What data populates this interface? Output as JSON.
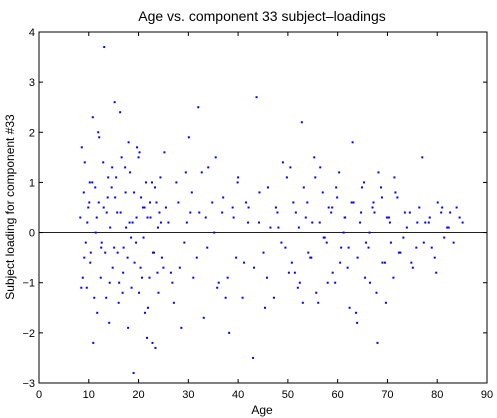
{
  "chart_data": {
    "type": "scatter",
    "title": "Age vs. component 33 subject–loadings",
    "xlabel": "Age",
    "ylabel": "Subject loading for component #33",
    "xlim": [
      0,
      90
    ],
    "ylim": [
      -3,
      4
    ],
    "xticks": [
      "0",
      "10",
      "20",
      "30",
      "40",
      "50",
      "60",
      "70",
      "80",
      "90"
    ],
    "yticks": [
      "−3",
      "−2",
      "−1",
      "0",
      "1",
      "2",
      "3",
      "4"
    ],
    "zero_line": 0,
    "grid": false,
    "point_color": "#0000ff",
    "series": [
      {
        "x": [
          8.3,
          8.8,
          9.2,
          9.6,
          10.1,
          10.4,
          10.8,
          11.3,
          11.7,
          12.1,
          12.6,
          13.0,
          13.5,
          13.9,
          14.3,
          14.8,
          15.2,
          15.7,
          16.1,
          16.6,
          17.0,
          17.4,
          17.9,
          18.3,
          18.8,
          19.2,
          19.7,
          20.1,
          20.5,
          21.0,
          21.5,
          21.9,
          22.4,
          22.8,
          23.3,
          23.8,
          24.2,
          24.7,
          25.2,
          26.0,
          27.1,
          28.0,
          29.2,
          30.1,
          31.0,
          32.2,
          33.1,
          34.0,
          35.2,
          36.1,
          37.0,
          38.2,
          39.1,
          40.0,
          41.2,
          42.1,
          43.0,
          44.2,
          45.1,
          46.0,
          47.2,
          48.1,
          49.0,
          50.2,
          51.1,
          52.0,
          52.8,
          53.6,
          54.5,
          55.3,
          56.1,
          57.0,
          57.8,
          58.7,
          59.5,
          60.3,
          61.2,
          62.0,
          62.8,
          63.7,
          64.5,
          65.3,
          66.2,
          67.0,
          67.8,
          68.7,
          69.5,
          70.3,
          71.2,
          72.0,
          73.2,
          74.5,
          75.8,
          77.0,
          78.3,
          79.5,
          80.8,
          82.0,
          83.3,
          84.5,
          8.5,
          9.0,
          9.4,
          9.9,
          10.3,
          10.7,
          11.1,
          11.6,
          12.0,
          12.4,
          12.9,
          13.3,
          13.8,
          14.2,
          14.6,
          15.1,
          15.5,
          16.0,
          16.4,
          16.9,
          17.3,
          17.8,
          18.2,
          18.6,
          19.1,
          19.5,
          20.0,
          20.4,
          20.9,
          21.3,
          21.8,
          22.2,
          22.7,
          23.1,
          23.6,
          24.0,
          24.5,
          25.0,
          26.5,
          27.6,
          28.6,
          29.7,
          30.7,
          31.7,
          32.7,
          33.8,
          34.8,
          35.8,
          36.8,
          37.9,
          38.9,
          39.9,
          40.9,
          42.0,
          43.2,
          44.3,
          45.4,
          46.5,
          47.6,
          48.7,
          49.8,
          50.8,
          51.6,
          52.4,
          53.2,
          54.1,
          54.9,
          55.7,
          56.5,
          57.4,
          58.2,
          59.0,
          59.9,
          60.7,
          61.5,
          62.4,
          63.2,
          64.0,
          64.9,
          65.7,
          66.5,
          67.4,
          68.2,
          69.0,
          69.9,
          70.7,
          71.6,
          72.6,
          73.9,
          75.1,
          76.4,
          77.6,
          78.9,
          80.1,
          81.4,
          82.6,
          83.9,
          85.1,
          8.6,
          9.1,
          9.7,
          10.2,
          10.9,
          11.4,
          11.9,
          12.5,
          13.1,
          13.6,
          14.1,
          14.7,
          15.3,
          15.8,
          16.3,
          16.8,
          17.5,
          18.0,
          18.5,
          19.0,
          19.6,
          20.2,
          20.7,
          21.2,
          21.7,
          22.3,
          22.9,
          23.4,
          23.9,
          24.4,
          25.5,
          26.8,
          28.3,
          29.5,
          30.4,
          32.0,
          33.5,
          35.5,
          37.5,
          39.6,
          41.6,
          43.7,
          45.8,
          47.9,
          49.5,
          50.5,
          51.4,
          52.2,
          53.0,
          53.9,
          54.7,
          55.5,
          56.4,
          57.2,
          58.0,
          58.9,
          59.7,
          60.5,
          61.4,
          62.2,
          63.0,
          63.9,
          64.7,
          65.5,
          66.4,
          67.2,
          68.0,
          68.9,
          69.7,
          70.5,
          71.4,
          72.3,
          73.5,
          74.8,
          76.0,
          77.3,
          78.5,
          79.8,
          81.0,
          82.3
        ],
        "y": [
          0.3,
          -0.9,
          1.4,
          -1.1,
          0.6,
          -0.4,
          2.3,
          0.9,
          -1.6,
          1.9,
          -0.2,
          0.5,
          -1.3,
          1.1,
          0.1,
          -0.7,
          2.6,
          0.4,
          -1.0,
          1.5,
          -0.3,
          0.8,
          -1.9,
          1.2,
          0.2,
          -0.6,
          1.7,
          -1.2,
          0.7,
          -0.1,
          1.0,
          -1.5,
          0.3,
          -2.2,
          0.9,
          -0.8,
          0.4,
          -0.5,
          1.6,
          0.2,
          -1.4,
          0.6,
          -0.2,
          1.9,
          -0.9,
          0.4,
          -1.7,
          1.3,
          0.0,
          -1.0,
          0.7,
          -2.0,
          0.3,
          1.1,
          -0.6,
          0.5,
          -2.5,
          0.2,
          -0.4,
          0.9,
          -1.3,
          0.1,
          1.4,
          -0.8,
          0.6,
          -1.1,
          2.2,
          0.3,
          -0.5,
          1.5,
          -1.4,
          0.8,
          -0.2,
          0.4,
          -1.0,
          1.2,
          0.0,
          -0.7,
          0.6,
          -1.6,
          0.2,
          1.0,
          -0.3,
          0.5,
          -1.2,
          0.9,
          -0.6,
          0.3,
          -0.9,
          0.7,
          -0.1,
          0.4,
          -0.3,
          1.5,
          0.2,
          -0.5,
          0.4,
          0.1,
          -0.2,
          0.3,
          -1.1,
          0.8,
          -0.2,
          0.5,
          -0.6,
          1.0,
          -1.3,
          0.3,
          0.6,
          -0.9,
          1.4,
          -0.4,
          0.7,
          -1.0,
          0.9,
          -0.3,
          1.1,
          -1.4,
          0.4,
          -0.8,
          1.3,
          -0.5,
          0.2,
          -1.1,
          0.8,
          -0.2,
          1.5,
          -0.7,
          0.5,
          -1.6,
          0.3,
          -0.9,
          1.0,
          -0.4,
          0.6,
          -1.2,
          0.2,
          -0.7,
          -0.8,
          1.0,
          -1.9,
          0.2,
          0.8,
          -0.5,
          1.2,
          -0.3,
          0.6,
          -1.1,
          0.4,
          -0.9,
          0.5,
          1.0,
          -1.3,
          0.2,
          -0.7,
          0.8,
          -1.5,
          0.1,
          0.5,
          -0.2,
          1.1,
          -0.6,
          0.4,
          -1.0,
          0.9,
          -0.4,
          0.2,
          -1.2,
          1.3,
          -0.1,
          0.5,
          -0.8,
          0.7,
          -0.3,
          0.3,
          -1.5,
          0.6,
          -0.5,
          0.9,
          -0.2,
          -1.0,
          0.4,
          1.2,
          -0.6,
          0.3,
          -0.2,
          0.8,
          -0.4,
          0.1,
          -0.7,
          0.5,
          0.2,
          -0.3,
          0.6,
          -0.1,
          0.4,
          0.5,
          0.2,
          1.7,
          -0.5,
          0.2,
          1.0,
          -2.2,
          0.0,
          2.0,
          -0.3,
          3.7,
          0.4,
          -1.8,
          1.3,
          0.7,
          -0.4,
          2.4,
          -1.2,
          0.1,
          1.8,
          -0.1,
          -2.8,
          0.3,
          1.6,
          -0.9,
          0.5,
          -2.1,
          0.6,
          -0.4,
          -2.3,
          0.1,
          1.1,
          0.5,
          -1.0,
          -0.7,
          1.2,
          0.4,
          2.5,
          0.3,
          1.5,
          -1.3,
          -0.5,
          0.6,
          2.7,
          -0.9,
          0.4,
          -0.3,
          1.3,
          -0.8,
          0.1,
          -1.4,
          0.6,
          -0.5,
          1.1,
          0.2,
          -0.1,
          -1.0,
          0.5,
          0.9,
          -0.6,
          0.3,
          -0.3,
          1.8,
          -1.8,
          0.4,
          -0.9,
          0.0,
          0.6,
          -2.2,
          0.7,
          -1.4,
          0.2,
          1.1,
          -0.4,
          0.4,
          -0.6,
          0.2,
          -0.2,
          0.3,
          -0.8,
          0.5,
          0.1
        ]
      }
    ]
  }
}
